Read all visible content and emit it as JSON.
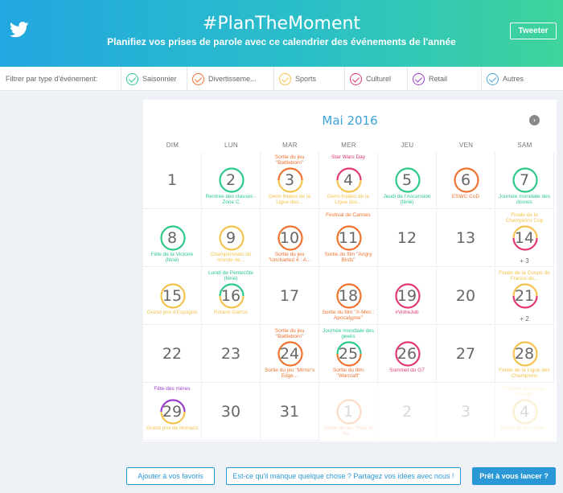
{
  "header": {
    "title": "#PlanTheMoment",
    "subtitle": "Planifiez vos prises de parole avec ce calendrier des événements de l'année",
    "tweet_label": "Tweeter"
  },
  "colors": {
    "saisonnier": "#2dc98a",
    "divertissement": "#f07330",
    "sports": "#f4c34d",
    "culturel": "#e2396e",
    "retail": "#9b3fcf",
    "autres": "#4aa5d8"
  },
  "filters": {
    "label": "Filtrer par type d'événement:",
    "items": [
      {
        "label": "Saisonnier",
        "color": "#2dc98a"
      },
      {
        "label": "Divertisseme...",
        "color": "#f07330"
      },
      {
        "label": "Sports",
        "color": "#f4c34d"
      },
      {
        "label": "Culturel",
        "color": "#e2396e"
      },
      {
        "label": "Retail",
        "color": "#9b3fcf"
      },
      {
        "label": "Autres",
        "color": "#4aa5d8"
      }
    ]
  },
  "calendar": {
    "month": "Mai 2016",
    "next_icon": "chevron-right-icon",
    "weekdays": [
      "DIM",
      "LUN",
      "MAR",
      "MER",
      "JEU",
      "VEN",
      "SAM"
    ],
    "days": [
      {
        "n": "1"
      },
      {
        "n": "2",
        "ring": [
          "#2dc98a"
        ],
        "bot": "Rentrée des classes - Zone C",
        "bc": "#2dc98a"
      },
      {
        "n": "3",
        "ring": [
          "#f07330",
          "#f4c34d"
        ],
        "top": "Sortie du jeu \"Battleborn\"",
        "tc": "#f07330",
        "bot": "Demi-finales de la Ligue des...",
        "bc": "#f4c34d"
      },
      {
        "n": "4",
        "ring": [
          "#e2396e",
          "#f4c34d"
        ],
        "top": "Star Wars Day",
        "tc": "#e2396e",
        "bot": "Demi-finales de la Ligue des...",
        "bc": "#f4c34d"
      },
      {
        "n": "5",
        "ring": [
          "#2dc98a"
        ],
        "bot": "Jeudi de l'Ascension (férié)",
        "bc": "#2dc98a"
      },
      {
        "n": "6",
        "ring": [
          "#f07330"
        ],
        "bot": "ESWC CoD",
        "bc": "#f07330"
      },
      {
        "n": "7",
        "ring": [
          "#2dc98a"
        ],
        "bot": "Journée mondiale des drones",
        "bc": "#2dc98a"
      },
      {
        "n": "8",
        "ring": [
          "#2dc98a"
        ],
        "bot": "Fête de la Victoire (férié)",
        "bc": "#2dc98a"
      },
      {
        "n": "9",
        "ring": [
          "#f4c34d"
        ],
        "bot": "Championnats du monde de...",
        "bc": "#f4c34d"
      },
      {
        "n": "10",
        "ring": [
          "#f07330"
        ],
        "bot": "Sortie du jeu \"Uncharted 4 : A...",
        "bc": "#f07330"
      },
      {
        "n": "11",
        "ring": [
          "#f07330"
        ],
        "top": "Festival de Cannes",
        "tc": "#f07330",
        "bot": "Sortie du film \"Angry Birds\"",
        "bc": "#f07330"
      },
      {
        "n": "12"
      },
      {
        "n": "13"
      },
      {
        "n": "14",
        "ring": [
          "#f4c34d",
          "#e2396e"
        ],
        "top": "Finale de la Champions Cup",
        "tc": "#f4c34d",
        "more": "+ 3"
      },
      {
        "n": "15",
        "ring": [
          "#f4c34d"
        ],
        "bot": "Grand prix d'Espagne",
        "bc": "#f4c34d"
      },
      {
        "n": "16",
        "ring": [
          "#2dc98a",
          "#f4c34d"
        ],
        "top": "Lundi de Pentecôte (férié)",
        "tc": "#2dc98a",
        "bot": "Roland Garros",
        "bc": "#f4c34d"
      },
      {
        "n": "17"
      },
      {
        "n": "18",
        "ring": [
          "#f07330"
        ],
        "bot": "Sortie du film \"X-Men : Apocalypse\"",
        "bc": "#f07330"
      },
      {
        "n": "19",
        "ring": [
          "#e2396e"
        ],
        "bot": "#VotreJob",
        "bc": "#e2396e"
      },
      {
        "n": "20"
      },
      {
        "n": "21",
        "ring": [
          "#f4c34d",
          "#e2396e"
        ],
        "top": "Finale de la Coupe de France de...",
        "tc": "#f4c34d",
        "more": "+ 2"
      },
      {
        "n": "22"
      },
      {
        "n": "23"
      },
      {
        "n": "24",
        "ring": [
          "#f07330"
        ],
        "top": "Sortie du jeu \"Battleborn\"",
        "tc": "#f07330",
        "bot": "Sortie du jeu \"Mirror's Edge...",
        "bc": "#f07330"
      },
      {
        "n": "25",
        "ring": [
          "#2dc98a",
          "#f07330"
        ],
        "top": "Journée mondiale des geeks",
        "tc": "#2dc98a",
        "bot": "Sortie du film \"Warcraft\"",
        "bc": "#f07330"
      },
      {
        "n": "26",
        "ring": [
          "#e2396e"
        ],
        "bot": "Sommet du G7",
        "bc": "#e2396e"
      },
      {
        "n": "27"
      },
      {
        "n": "28",
        "ring": [
          "#f4c34d"
        ],
        "bot": "Finale de la Ligue des Champions",
        "bc": "#f4c34d"
      },
      {
        "n": "29",
        "ring": [
          "#9b3fcf",
          "#f4c34d"
        ],
        "top": "Fête des mères",
        "tc": "#9b3fcf",
        "bot": "Grand prix de Monaco",
        "bc": "#f4c34d"
      },
      {
        "n": "30"
      },
      {
        "n": "31"
      },
      {
        "n": "1",
        "faded": true,
        "ring": [
          "#f07330"
        ],
        "bot": "Sortie du jeu \"Rise of the...",
        "bc": "#f07330"
      },
      {
        "n": "2",
        "faded": true
      },
      {
        "n": "3",
        "faded": true
      },
      {
        "n": "4",
        "faded": true,
        "ring": [
          "#f4c34d"
        ],
        "top": "Festival des Lotus Lounge",
        "tc": "#f4c34d",
        "bot": "Finale de la Coupe...",
        "bc": "#f4c34d"
      }
    ]
  },
  "footer": {
    "favorites_label": "Ajouter à vos favoris",
    "feedback_label": "Est-ce qu'il manque quelque chose ? Partagez vos idées avec nous !",
    "start_label": "Prêt à vous lancer ?"
  }
}
